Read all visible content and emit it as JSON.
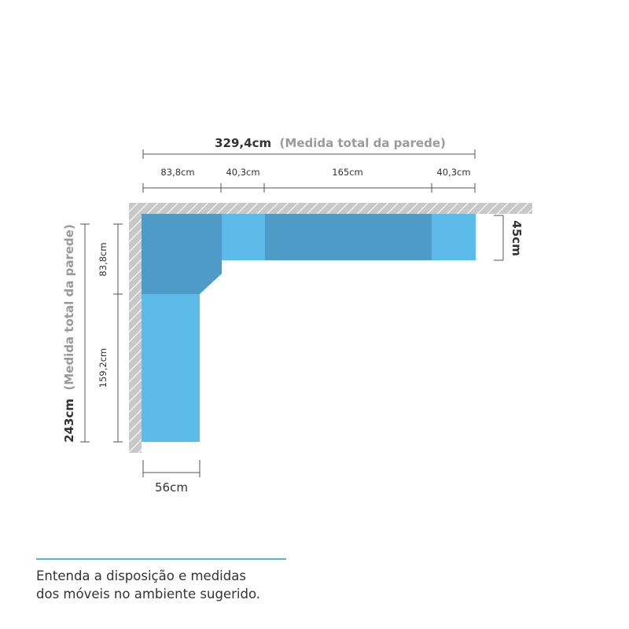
{
  "colors": {
    "wall": "#c8c8c8",
    "hatch": "#ffffff",
    "module_dark": "#4f9bc7",
    "module_light": "#5dbbe9",
    "dimension_line": "#555555",
    "note_text": "#9a9a9a",
    "accent_rule": "#4fb3e3"
  },
  "top_total": {
    "value": "329,4cm",
    "note": "(Medida total da parede)"
  },
  "top_segments": [
    "83,8cm",
    "40,3cm",
    "165cm",
    "40,3cm"
  ],
  "depth_right": "45cm",
  "left_total": {
    "value": "243cm",
    "note": "(Medida total da parede)"
  },
  "left_segments": [
    "83,8cm",
    "159,2cm"
  ],
  "bottom_width": "56cm",
  "caption": {
    "line1": "Entenda a disposição e medidas",
    "line2": "dos móveis no ambiente sugerido."
  }
}
